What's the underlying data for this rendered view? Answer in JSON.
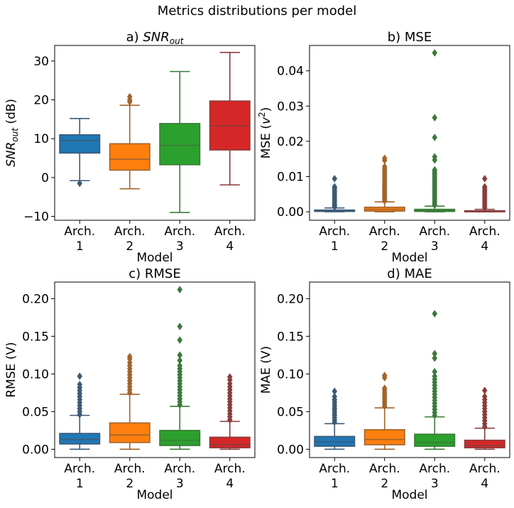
{
  "figure": {
    "title": "Metrics distributions per model"
  },
  "palette": [
    "#1f77b4",
    "#ff7f0e",
    "#2ca02c",
    "#d62728"
  ],
  "chart_data": [
    {
      "type": "boxplot",
      "title_prefix": "a) ",
      "title_base": "SNR",
      "title_sub": "out",
      "xlabel": "Model",
      "ylabel_base": "SNR",
      "ylabel_sub": "out",
      "ylabel_suffix": " (dB)",
      "categories": [
        [
          "Arch.",
          "1"
        ],
        [
          "Arch.",
          "2"
        ],
        [
          "Arch.",
          "3"
        ],
        [
          "Arch.",
          "4"
        ]
      ],
      "ylim": [
        -11,
        34
      ],
      "yticks": [
        -10,
        0,
        10,
        20,
        30
      ],
      "ytick_labels": [
        "−10",
        "0",
        "10",
        "20",
        "30"
      ],
      "boxes": [
        {
          "whislo": -0.8,
          "q1": 6.3,
          "med": 9.5,
          "q3": 11.0,
          "whishi": 15.2,
          "fliers": [
            -1.5
          ]
        },
        {
          "whislo": -2.9,
          "q1": 1.9,
          "med": 4.7,
          "q3": 8.7,
          "whishi": 18.6,
          "fliers": [
            19.5,
            20.0,
            20.8
          ]
        },
        {
          "whislo": -9.0,
          "q1": 3.3,
          "med": 8.3,
          "q3": 13.9,
          "whishi": 27.3,
          "fliers": []
        },
        {
          "whislo": -1.9,
          "q1": 7.1,
          "med": 13.3,
          "q3": 19.7,
          "whishi": 32.2,
          "fliers": []
        }
      ]
    },
    {
      "type": "boxplot",
      "title_prefix": "b) ",
      "title_base": "MSE",
      "xlabel": "Model",
      "ylabel_base": "MSE (",
      "ylabel_italic": "v",
      "ylabel_sup": "2",
      "ylabel_suffix": ")",
      "categories": [
        [
          "Arch.",
          "1"
        ],
        [
          "Arch.",
          "2"
        ],
        [
          "Arch.",
          "3"
        ],
        [
          "Arch.",
          "4"
        ]
      ],
      "ylim": [
        -0.0024,
        0.0472
      ],
      "yticks": [
        0,
        0.01,
        0.02,
        0.03,
        0.04
      ],
      "ytick_labels": [
        "0.00",
        "0.01",
        "0.02",
        "0.03",
        "0.04"
      ],
      "boxes": [
        {
          "whislo": 0,
          "q1": 0.0001,
          "med": 0.0002,
          "q3": 0.0005,
          "whishi": 0.0011,
          "fliers": [
            0.0014,
            0.0018,
            0.0022,
            0.0027,
            0.0032,
            0.0037,
            0.0042,
            0.0047,
            0.0052,
            0.0057,
            0.0062,
            0.0067,
            0.0071,
            0.0094
          ]
        },
        {
          "whislo": 0,
          "q1": 0.0002,
          "med": 0.0007,
          "q3": 0.0013,
          "whishi": 0.0028,
          "fliers": [
            0.0031,
            0.0036,
            0.0041,
            0.0046,
            0.0051,
            0.0056,
            0.0061,
            0.0066,
            0.0071,
            0.0076,
            0.0081,
            0.0087,
            0.0093,
            0.0099,
            0.0105,
            0.0111,
            0.0117,
            0.0122,
            0.0128,
            0.0146,
            0.0152
          ]
        },
        {
          "whislo": 0,
          "q1": 0.0001,
          "med": 0.0003,
          "q3": 0.0007,
          "whishi": 0.0016,
          "fliers": [
            0.0019,
            0.0024,
            0.0029,
            0.0034,
            0.0039,
            0.0044,
            0.0049,
            0.0054,
            0.0059,
            0.0064,
            0.0069,
            0.0074,
            0.0079,
            0.0084,
            0.0089,
            0.0094,
            0.0099,
            0.0104,
            0.0109,
            0.0114,
            0.0119,
            0.0147,
            0.0156,
            0.0211,
            0.0267,
            0.0451
          ]
        },
        {
          "whislo": 0,
          "q1": 0.0,
          "med": 0.0001,
          "q3": 0.0003,
          "whishi": 0.0007,
          "fliers": [
            0.0011,
            0.0016,
            0.0021,
            0.0026,
            0.0031,
            0.0036,
            0.0041,
            0.0046,
            0.0051,
            0.0056,
            0.0061,
            0.0066,
            0.0071,
            0.0094
          ]
        }
      ]
    },
    {
      "type": "boxplot",
      "title_prefix": "c) ",
      "title_base": "RMSE",
      "xlabel": "Model",
      "ylabel_base": "RMSE (V)",
      "categories": [
        [
          "Arch.",
          "1"
        ],
        [
          "Arch.",
          "2"
        ],
        [
          "Arch.",
          "3"
        ],
        [
          "Arch.",
          "4"
        ]
      ],
      "ylim": [
        -0.011,
        0.222
      ],
      "yticks": [
        0,
        0.05,
        0.1,
        0.15,
        0.2
      ],
      "ytick_labels": [
        "0.00",
        "0.05",
        "0.10",
        "0.15",
        "0.20"
      ],
      "boxes": [
        {
          "whislo": 0.0,
          "q1": 0.007,
          "med": 0.013,
          "q3": 0.021,
          "whishi": 0.045,
          "fliers": [
            0.046,
            0.05,
            0.054,
            0.058,
            0.062,
            0.066,
            0.07,
            0.074,
            0.078,
            0.082,
            0.086,
            0.097
          ]
        },
        {
          "whislo": 0.0,
          "q1": 0.009,
          "med": 0.019,
          "q3": 0.035,
          "whishi": 0.073,
          "fliers": [
            0.075,
            0.079,
            0.083,
            0.087,
            0.091,
            0.095,
            0.099,
            0.103,
            0.107,
            0.111,
            0.115,
            0.12,
            0.123
          ]
        },
        {
          "whislo": 0.0,
          "q1": 0.005,
          "med": 0.012,
          "q3": 0.025,
          "whishi": 0.057,
          "fliers": [
            0.059,
            0.063,
            0.067,
            0.071,
            0.075,
            0.079,
            0.083,
            0.087,
            0.091,
            0.095,
            0.099,
            0.103,
            0.107,
            0.111,
            0.118,
            0.125,
            0.145,
            0.163,
            0.212
          ]
        },
        {
          "whislo": 0.0,
          "q1": 0.002,
          "med": 0.006,
          "q3": 0.016,
          "whishi": 0.037,
          "fliers": [
            0.039,
            0.043,
            0.047,
            0.051,
            0.055,
            0.059,
            0.063,
            0.067,
            0.071,
            0.075,
            0.079,
            0.083,
            0.087,
            0.092,
            0.096
          ]
        }
      ]
    },
    {
      "type": "boxplot",
      "title_prefix": "d) ",
      "title_base": "MAE",
      "xlabel": "Model",
      "ylabel_base": "MAE (V)",
      "categories": [
        [
          "Arch.",
          "1"
        ],
        [
          "Arch.",
          "2"
        ],
        [
          "Arch.",
          "3"
        ],
        [
          "Arch.",
          "4"
        ]
      ],
      "ylim": [
        -0.011,
        0.222
      ],
      "yticks": [
        0,
        0.05,
        0.1,
        0.15,
        0.2
      ],
      "ytick_labels": [
        "0.00",
        "0.05",
        "0.10",
        "0.15",
        "0.20"
      ],
      "boxes": [
        {
          "whislo": 0.0,
          "q1": 0.004,
          "med": 0.01,
          "q3": 0.017,
          "whishi": 0.034,
          "fliers": [
            0.036,
            0.039,
            0.042,
            0.045,
            0.048,
            0.051,
            0.054,
            0.057,
            0.06,
            0.063,
            0.066,
            0.07,
            0.077
          ]
        },
        {
          "whislo": 0.0,
          "q1": 0.006,
          "med": 0.013,
          "q3": 0.026,
          "whishi": 0.055,
          "fliers": [
            0.057,
            0.06,
            0.063,
            0.066,
            0.069,
            0.072,
            0.075,
            0.078,
            0.081,
            0.095,
            0.098
          ]
        },
        {
          "whislo": 0.0,
          "q1": 0.004,
          "med": 0.009,
          "q3": 0.02,
          "whishi": 0.043,
          "fliers": [
            0.045,
            0.049,
            0.053,
            0.057,
            0.061,
            0.065,
            0.069,
            0.073,
            0.077,
            0.081,
            0.085,
            0.089,
            0.093,
            0.097,
            0.103,
            0.121,
            0.127,
            0.18
          ]
        },
        {
          "whislo": 0.0,
          "q1": 0.002,
          "med": 0.005,
          "q3": 0.012,
          "whishi": 0.028,
          "fliers": [
            0.03,
            0.034,
            0.038,
            0.042,
            0.046,
            0.05,
            0.054,
            0.058,
            0.062,
            0.066,
            0.07,
            0.078
          ]
        }
      ]
    }
  ]
}
